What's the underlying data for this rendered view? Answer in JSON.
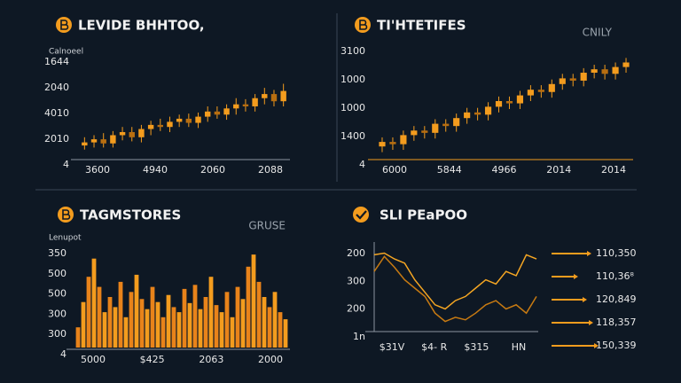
{
  "chart_data": [
    {
      "type": "candlestick",
      "title": "LEVIDE BHHTOO,",
      "subtitle": "Calnoeel",
      "color": "#f39c1e",
      "y_axis_labels": [
        "1644",
        "2040",
        "4010",
        "2010",
        "4"
      ],
      "x_axis_labels": [
        "3600",
        "4940",
        "2060",
        "2088"
      ],
      "ylim": [
        0,
        100
      ],
      "open": [
        12,
        15,
        18,
        14,
        22,
        25,
        20,
        28,
        32,
        30,
        35,
        38,
        34,
        40,
        45,
        42,
        48,
        52,
        50,
        58,
        62,
        55
      ],
      "close": [
        15,
        18,
        14,
        22,
        25,
        20,
        28,
        32,
        30,
        35,
        38,
        34,
        40,
        45,
        42,
        48,
        52,
        50,
        58,
        62,
        55,
        65
      ],
      "high": [
        20,
        22,
        24,
        26,
        30,
        30,
        32,
        36,
        38,
        40,
        42,
        43,
        44,
        50,
        50,
        52,
        58,
        57,
        62,
        68,
        66,
        72
      ],
      "low": [
        8,
        10,
        10,
        10,
        17,
        16,
        15,
        22,
        26,
        25,
        30,
        30,
        29,
        35,
        38,
        37,
        42,
        45,
        45,
        52,
        50,
        50
      ]
    },
    {
      "type": "candlestick",
      "title": "TI'HTETIFES",
      "subtitle": "CNILY",
      "color": "#f39c1e",
      "y_axis_labels": [
        "3100",
        "1000",
        "1000",
        "1400",
        "4"
      ],
      "x_axis_labels": [
        "6000",
        "5844",
        "4966",
        "2014",
        "2014"
      ],
      "ylim": [
        0,
        100
      ],
      "open": [
        10,
        14,
        12,
        20,
        24,
        22,
        30,
        28,
        35,
        40,
        38,
        45,
        50,
        48,
        55,
        60,
        58,
        65,
        70,
        68,
        75,
        78,
        74,
        80
      ],
      "close": [
        14,
        12,
        20,
        24,
        22,
        30,
        28,
        35,
        40,
        38,
        45,
        50,
        48,
        55,
        60,
        58,
        65,
        70,
        68,
        75,
        78,
        74,
        80,
        84
      ],
      "high": [
        18,
        18,
        24,
        28,
        28,
        34,
        34,
        39,
        44,
        44,
        49,
        54,
        54,
        59,
        64,
        64,
        69,
        74,
        74,
        79,
        82,
        82,
        84,
        88
      ],
      "low": [
        5,
        7,
        7,
        15,
        17,
        17,
        23,
        23,
        30,
        33,
        33,
        40,
        43,
        43,
        50,
        53,
        53,
        60,
        63,
        63,
        70,
        69,
        69,
        75
      ]
    },
    {
      "type": "bar",
      "title": "TAGMSTORES",
      "subtitle": "GRUSE",
      "y_axis_title": "Lenupot",
      "color": "#f39c1e",
      "y_axis_labels": [
        "350",
        "500",
        "500",
        "300",
        "300",
        "4"
      ],
      "x_axis_labels": [
        "5000",
        "$425",
        "2063",
        "2000"
      ],
      "ylim": [
        0,
        100
      ],
      "values": [
        20,
        45,
        70,
        88,
        60,
        35,
        50,
        40,
        65,
        30,
        55,
        72,
        48,
        38,
        60,
        45,
        30,
        52,
        40,
        35,
        58,
        44,
        62,
        38,
        50,
        70,
        42,
        35,
        55,
        30,
        60,
        48,
        80,
        92,
        65,
        50,
        40,
        55,
        35,
        28
      ]
    },
    {
      "type": "line",
      "title": "SLI PEaPOO",
      "y_axis_labels": [
        "200",
        "300",
        "200",
        "1n"
      ],
      "x_axis_labels": [
        "$31V",
        "$4- R",
        "$315",
        "HN"
      ],
      "ylim": [
        0,
        100
      ],
      "series": [
        {
          "color": "#f5a623",
          "values": [
            90,
            92,
            85,
            80,
            60,
            45,
            30,
            25,
            35,
            40,
            50,
            60,
            55,
            70,
            65,
            90,
            85
          ]
        },
        {
          "color": "#c77a12",
          "values": [
            70,
            88,
            75,
            60,
            50,
            40,
            20,
            10,
            15,
            12,
            20,
            30,
            35,
            25,
            30,
            20,
            40
          ]
        }
      ],
      "side_list": [
        "110,350",
        "110,36⁸",
        "120,849",
        "118,357",
        "150,339"
      ]
    }
  ]
}
